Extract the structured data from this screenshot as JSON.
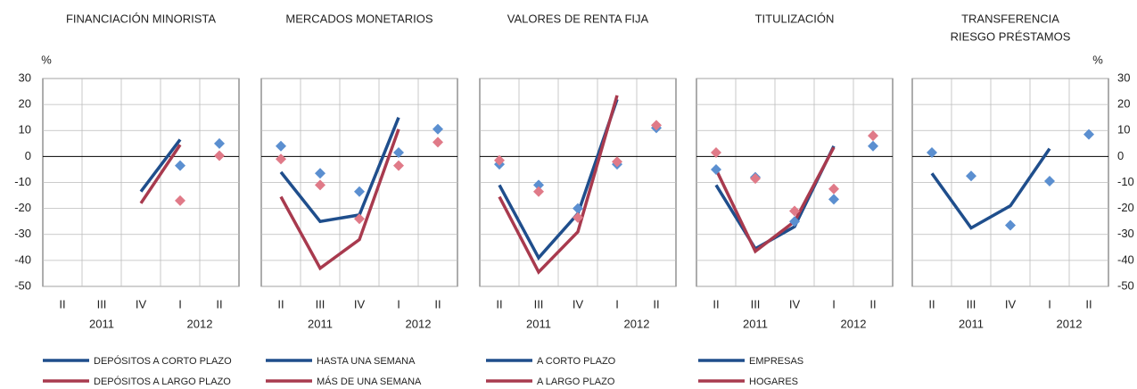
{
  "chart_data": [
    {
      "type": "line",
      "title": [
        "FINANCIACIÓN MINORISTA"
      ],
      "y_unit": "%",
      "ytick_labels": "left",
      "categories": [
        "II",
        "III",
        "IV",
        "I",
        "II"
      ],
      "years": [
        "2011",
        "2012"
      ],
      "ylim": [
        -50,
        30
      ],
      "yticks": [
        -50,
        -40,
        -30,
        -20,
        -10,
        0,
        10,
        20,
        30
      ],
      "grid": true,
      "series": [
        {
          "name": "DEPÓSITOS A CORTO PLAZO",
          "color": "#1f4e8c",
          "marker_color": "#5b8fd0",
          "values": [
            null,
            null,
            -13.5,
            6.5,
            null
          ],
          "expected": [
            null,
            null,
            null,
            -3.5,
            5
          ]
        },
        {
          "name": "DEPÓSITOS A LARGO PLAZO",
          "color": "#a83a4e",
          "marker_color": "#e07a88",
          "values": [
            null,
            null,
            -18,
            4.5,
            null
          ],
          "expected": [
            null,
            null,
            null,
            -17,
            0.3
          ]
        }
      ]
    },
    {
      "type": "line",
      "title": [
        "MERCADOS MONETARIOS"
      ],
      "categories": [
        "II",
        "III",
        "IV",
        "I",
        "II"
      ],
      "years": [
        "2011",
        "2012"
      ],
      "ylim": [
        -50,
        30
      ],
      "yticks": [
        -50,
        -40,
        -30,
        -20,
        -10,
        0,
        10,
        20,
        30
      ],
      "grid": true,
      "series": [
        {
          "name": "HASTA UNA SEMANA",
          "color": "#1f4e8c",
          "marker_color": "#5b8fd0",
          "values": [
            -6,
            -25,
            -22.5,
            15,
            null
          ],
          "expected": [
            4,
            -6.5,
            -13.5,
            1.5,
            10.5
          ]
        },
        {
          "name": "MÁS DE UNA SEMANA",
          "color": "#a83a4e",
          "marker_color": "#e07a88",
          "values": [
            -15.5,
            -43,
            -32,
            10.5,
            null
          ],
          "expected": [
            -1,
            -11,
            -24,
            -3.5,
            5.5
          ]
        }
      ]
    },
    {
      "type": "line",
      "title": [
        "VALORES DE RENTA FIJA"
      ],
      "categories": [
        "II",
        "III",
        "IV",
        "I",
        "II"
      ],
      "years": [
        "2011",
        "2012"
      ],
      "ylim": [
        -50,
        30
      ],
      "yticks": [
        -50,
        -40,
        -30,
        -20,
        -10,
        0,
        10,
        20,
        30
      ],
      "grid": true,
      "series": [
        {
          "name": "A CORTO PLAZO",
          "color": "#1f4e8c",
          "marker_color": "#5b8fd0",
          "values": [
            -11,
            -39,
            -22,
            22,
            null
          ],
          "expected": [
            -3,
            -11,
            -20,
            -3,
            11
          ]
        },
        {
          "name": "A LARGO PLAZO",
          "color": "#a83a4e",
          "marker_color": "#e07a88",
          "values": [
            -15.5,
            -44.5,
            -29,
            23.5,
            null
          ],
          "expected": [
            -1.5,
            -13.5,
            -23.5,
            -2,
            12
          ]
        }
      ]
    },
    {
      "type": "line",
      "title": [
        "TITULIZACIÓN"
      ],
      "categories": [
        "II",
        "III",
        "IV",
        "I",
        "II"
      ],
      "years": [
        "2011",
        "2012"
      ],
      "ylim": [
        -50,
        30
      ],
      "yticks": [
        -50,
        -40,
        -30,
        -20,
        -10,
        0,
        10,
        20,
        30
      ],
      "grid": true,
      "series": [
        {
          "name": "EMPRESAS",
          "color": "#1f4e8c",
          "marker_color": "#5b8fd0",
          "values": [
            -11,
            -35.5,
            -27,
            4,
            null
          ],
          "expected": [
            -5,
            -8,
            -25,
            -16.5,
            4
          ]
        },
        {
          "name": "HOGARES",
          "color": "#a83a4e",
          "marker_color": "#e07a88",
          "values": [
            -5,
            -36.5,
            -25,
            3.5,
            null
          ],
          "expected": [
            1.5,
            -8.5,
            -21,
            -12.5,
            8
          ]
        }
      ]
    },
    {
      "type": "line",
      "title": [
        "TRANSFERENCIA",
        "RIESGO PRÉSTAMOS"
      ],
      "y_unit": "%",
      "ytick_labels": "right",
      "categories": [
        "II",
        "III",
        "IV",
        "I",
        "II"
      ],
      "years": [
        "2011",
        "2012"
      ],
      "ylim": [
        -50,
        30
      ],
      "yticks": [
        -50,
        -40,
        -30,
        -20,
        -10,
        0,
        10,
        20,
        30
      ],
      "grid": true,
      "series": [
        {
          "color": "#1f4e8c",
          "marker_color": "#5b8fd0",
          "values": [
            -6.5,
            -27.5,
            -19,
            3,
            null
          ],
          "expected": [
            1.5,
            -7.5,
            -26.5,
            -9.5,
            8.5
          ]
        }
      ]
    }
  ]
}
